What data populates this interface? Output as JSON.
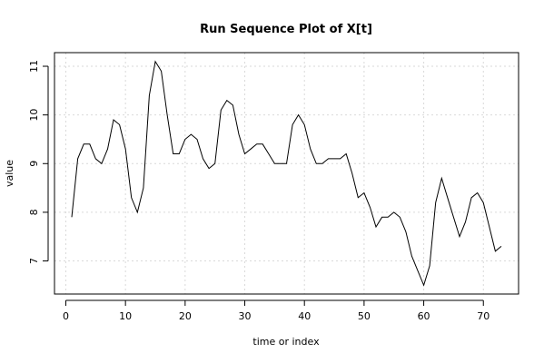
{
  "chart_data": {
    "type": "line",
    "title": "Run Sequence Plot of X[t]",
    "xlabel": "time or index",
    "ylabel": "value",
    "xlim": [
      -1.9,
      75.9
    ],
    "ylim": [
      6.32,
      11.28
    ],
    "x_ticks": [
      0,
      10,
      20,
      30,
      40,
      50,
      60,
      70
    ],
    "y_ticks": [
      7,
      8,
      9,
      10,
      11
    ],
    "grid": true,
    "series": [
      {
        "x": [
          1,
          2,
          3,
          4,
          5,
          6,
          7,
          8,
          9,
          10,
          11,
          12,
          13,
          14,
          15,
          16,
          17,
          18,
          19,
          20,
          21,
          22,
          23,
          24,
          25,
          26,
          27,
          28,
          29,
          30,
          31,
          32,
          33,
          34,
          35,
          36,
          37,
          38,
          39,
          40,
          41,
          42,
          43,
          44,
          45,
          46,
          47,
          48,
          49,
          50,
          51,
          52,
          53,
          54,
          55,
          56,
          57,
          58,
          59,
          60,
          61,
          62,
          63,
          64,
          65,
          66,
          67,
          68,
          69,
          70,
          71,
          72,
          73
        ],
        "values": [
          7.9,
          9.1,
          9.4,
          9.4,
          9.1,
          9.0,
          9.3,
          9.9,
          9.8,
          9.3,
          8.3,
          8.0,
          8.5,
          10.4,
          11.1,
          10.9,
          10.0,
          9.2,
          9.2,
          9.5,
          9.6,
          9.5,
          9.1,
          8.9,
          9.0,
          10.1,
          10.3,
          10.2,
          9.6,
          9.2,
          9.3,
          9.4,
          9.4,
          9.2,
          9.0,
          9.0,
          9.0,
          9.8,
          10.0,
          9.8,
          9.3,
          9.0,
          9.0,
          9.1,
          9.1,
          9.1,
          9.2,
          8.8,
          8.3,
          8.4,
          8.1,
          7.7,
          7.9,
          7.9,
          8.0,
          7.9,
          7.6,
          7.1,
          6.8,
          6.5,
          6.9,
          8.2,
          8.7,
          8.3,
          7.9,
          7.5,
          7.8,
          8.3,
          8.4,
          8.2,
          7.7,
          7.2,
          7.3
        ]
      }
    ]
  }
}
